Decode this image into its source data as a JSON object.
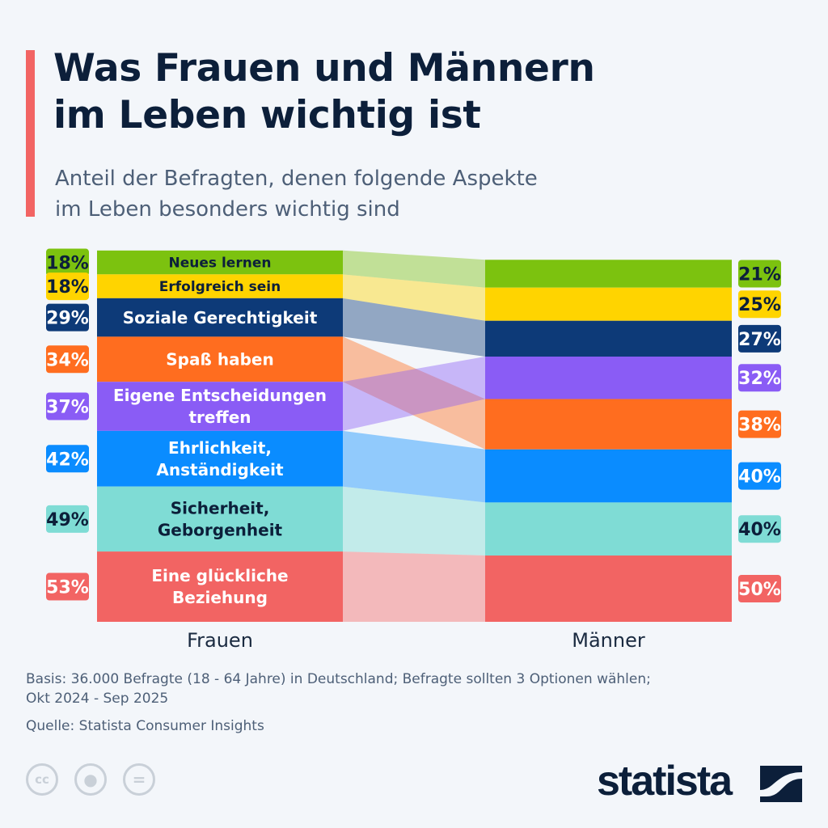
{
  "header": {
    "title_line1": "Was Frauen und Männern",
    "title_line2": "im Leben wichtig ist",
    "subtitle_line1": "Anteil der Befragten, denen folgende Aspekte",
    "subtitle_line2": "im Leben besonders wichtig sind"
  },
  "chart_data": {
    "type": "sankey-ranking",
    "title": "Was Frauen und Männern im Leben wichtig ist",
    "columns": [
      "Frauen",
      "Männer"
    ],
    "unit": "%",
    "items": [
      {
        "label": [
          "Neues lernen"
        ],
        "frauen": 18,
        "maenner": 21,
        "color": "#7cc20f",
        "dark_text": true,
        "rank_maenner": 0
      },
      {
        "label": [
          "Erfolgreich sein"
        ],
        "frauen": 18,
        "maenner": 25,
        "color": "#ffd400",
        "dark_text": true,
        "rank_maenner": 1
      },
      {
        "label": [
          "Soziale Gerechtigkeit"
        ],
        "frauen": 29,
        "maenner": 27,
        "color": "#0d3a78",
        "dark_text": false,
        "rank_maenner": 2
      },
      {
        "label": [
          "Spaß haben"
        ],
        "frauen": 34,
        "maenner": 38,
        "color": "#ff6d1f",
        "dark_text": false,
        "rank_maenner": 4
      },
      {
        "label": [
          "Eigene Entscheidungen",
          "treffen"
        ],
        "frauen": 37,
        "maenner": 32,
        "color": "#8a5cf5",
        "dark_text": false,
        "rank_maenner": 3
      },
      {
        "label": [
          "Ehrlichkeit,",
          "Anständigkeit"
        ],
        "frauen": 42,
        "maenner": 40,
        "color": "#0a8cff",
        "dark_text": false,
        "rank_maenner": 5
      },
      {
        "label": [
          "Sicherheit,",
          "Geborgenheit"
        ],
        "frauen": 49,
        "maenner": 40,
        "color": "#7fdcd5",
        "dark_text": true,
        "rank_maenner": 6
      },
      {
        "label": [
          "Eine glückliche",
          "Beziehung"
        ],
        "frauen": 53,
        "maenner": 50,
        "color": "#f26463",
        "dark_text": false,
        "rank_maenner": 7
      }
    ]
  },
  "footer": {
    "basis_line1": "Basis: 36.000 Befragte (18 - 64 Jahre) in Deutschland; Befragte sollten 3 Optionen wählen;",
    "basis_line2": "Okt 2024 - Sep 2025",
    "source": "Quelle: Statista Consumer Insights",
    "license_icons": [
      "cc-icon",
      "attribution-icon",
      "no-derivatives-icon"
    ],
    "logo": "statista"
  }
}
